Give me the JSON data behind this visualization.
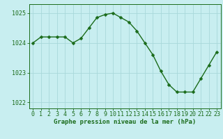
{
  "x": [
    0,
    1,
    2,
    3,
    4,
    5,
    6,
    7,
    8,
    9,
    10,
    11,
    12,
    13,
    14,
    15,
    16,
    17,
    18,
    19,
    20,
    21,
    22,
    23
  ],
  "y": [
    1024.0,
    1024.2,
    1024.2,
    1024.2,
    1024.2,
    1024.0,
    1024.15,
    1024.5,
    1024.85,
    1024.95,
    1025.0,
    1024.85,
    1024.7,
    1024.4,
    1024.0,
    1023.6,
    1023.05,
    1022.6,
    1022.35,
    1022.35,
    1022.35,
    1022.8,
    1023.25,
    1023.7
  ],
  "line_color": "#1a6b1a",
  "marker_color": "#1a6b1a",
  "bg_color": "#c8eef0",
  "grid_color": "#a8d8da",
  "title": "Graphe pression niveau de la mer (hPa)",
  "xlim": [
    -0.5,
    23.5
  ],
  "ylim": [
    1021.8,
    1025.3
  ],
  "yticks": [
    1022,
    1023,
    1024,
    1025
  ],
  "xticks": [
    0,
    1,
    2,
    3,
    4,
    5,
    6,
    7,
    8,
    9,
    10,
    11,
    12,
    13,
    14,
    15,
    16,
    17,
    18,
    19,
    20,
    21,
    22,
    23
  ],
  "title_fontsize": 6.5,
  "tick_fontsize": 6.0,
  "line_width": 1.0,
  "marker_size": 2.5
}
